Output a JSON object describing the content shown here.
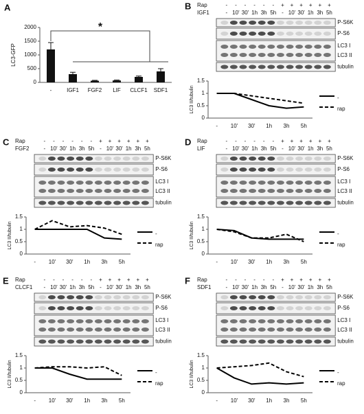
{
  "panel_labels": [
    "A",
    "B",
    "C",
    "D",
    "E",
    "F"
  ],
  "chart_data": [
    {
      "type": "bar",
      "ylabel": "LC3-GFP",
      "categories": [
        "-",
        "IGF1",
        "FGF2",
        "LIF",
        "CLCF1",
        "SDF1"
      ],
      "values": [
        1200,
        300,
        60,
        70,
        200,
        400
      ],
      "errors": [
        250,
        70,
        15,
        15,
        30,
        100
      ],
      "color": "#111111",
      "ylim": [
        0,
        2000
      ],
      "yticks": [
        0,
        500,
        1000,
        1500,
        2000
      ],
      "annotation": "*"
    },
    {
      "type": "line",
      "ylabel": "LC3 II/tubulin",
      "categories": [
        "-",
        "10'",
        "30'",
        "1h",
        "3h",
        "5h"
      ],
      "ylim": [
        0,
        1.5
      ],
      "yticks": [
        0,
        0.5,
        1,
        1.5
      ],
      "series": [
        {
          "name": "-",
          "color": "#000000",
          "dash": false,
          "values": [
            1,
            1,
            0.75,
            0.5,
            0.4,
            0.45
          ]
        },
        {
          "name": "rap",
          "color": "#000000",
          "dash": true,
          "values": [
            1,
            1,
            0.9,
            0.8,
            0.7,
            0.6
          ]
        }
      ]
    },
    {
      "type": "line",
      "ylabel": "LC3 II/tubulin",
      "categories": [
        "-",
        "10'",
        "30'",
        "1h",
        "3h",
        "5h"
      ],
      "ylim": [
        0,
        1.5
      ],
      "yticks": [
        0,
        0.5,
        1,
        1.5
      ],
      "series": [
        {
          "name": "-",
          "color": "#000000",
          "dash": false,
          "values": [
            1,
            1,
            1,
            1,
            0.65,
            0.6
          ]
        },
        {
          "name": "rap",
          "color": "#000000",
          "dash": true,
          "values": [
            1,
            1.35,
            1.1,
            1.15,
            1.05,
            0.8
          ]
        }
      ]
    },
    {
      "type": "line",
      "ylabel": "LC3 II/tubulin",
      "categories": [
        "-",
        "10'",
        "30'",
        "1h",
        "3h",
        "5h"
      ],
      "ylim": [
        0,
        1.5
      ],
      "yticks": [
        0,
        0.5,
        1,
        1.5
      ],
      "series": [
        {
          "name": "-",
          "color": "#000000",
          "dash": false,
          "values": [
            1,
            0.95,
            0.65,
            0.6,
            0.6,
            0.6
          ]
        },
        {
          "name": "rap",
          "color": "#000000",
          "dash": true,
          "values": [
            1,
            0.9,
            0.65,
            0.65,
            0.8,
            0.5
          ]
        }
      ]
    },
    {
      "type": "line",
      "ylabel": "LC3 II/tubulin",
      "categories": [
        "-",
        "10'",
        "30'",
        "1h",
        "3h",
        "5h"
      ],
      "ylim": [
        0,
        1.5
      ],
      "yticks": [
        0,
        0.5,
        1,
        1.5
      ],
      "series": [
        {
          "name": "-",
          "color": "#000000",
          "dash": false,
          "values": [
            1,
            1,
            0.75,
            0.55,
            0.55,
            0.55
          ]
        },
        {
          "name": "rap",
          "color": "#000000",
          "dash": true,
          "values": [
            1,
            1.05,
            1.05,
            1,
            1.05,
            0.7
          ]
        }
      ]
    },
    {
      "type": "line",
      "ylabel": "LC3 II/tubulin",
      "categories": [
        "-",
        "10'",
        "30'",
        "1h",
        "3h",
        "5h"
      ],
      "ylim": [
        0,
        1.5
      ],
      "yticks": [
        0,
        0.5,
        1,
        1.5
      ],
      "series": [
        {
          "name": "-",
          "color": "#000000",
          "dash": false,
          "values": [
            1,
            0.6,
            0.35,
            0.4,
            0.35,
            0.4
          ]
        },
        {
          "name": "rap",
          "color": "#000000",
          "dash": true,
          "values": [
            1,
            1.05,
            1.1,
            1.2,
            0.85,
            0.65
          ]
        }
      ]
    }
  ],
  "blots": [
    {
      "rap_label": "Rap",
      "rap": [
        "-",
        "-",
        "-",
        "-",
        "-",
        "-",
        "+",
        "+",
        "+",
        "+",
        "+",
        "+"
      ],
      "factor": "IGF1",
      "times": [
        "-",
        "10'",
        "30'",
        "1h",
        "3h",
        "5h",
        "-",
        "10'",
        "30'",
        "1h",
        "3h",
        "5h"
      ],
      "bands": [
        "P-S6K",
        "P-S6",
        "LC3 I",
        "LC3 II",
        "tubulin"
      ]
    },
    {
      "rap_label": "Rap",
      "rap": [
        "-",
        "-",
        "-",
        "-",
        "-",
        "-",
        "+",
        "+",
        "+",
        "+",
        "+",
        "+"
      ],
      "factor": "FGF2",
      "times": [
        "-",
        "10'",
        "30'",
        "1h",
        "3h",
        "5h",
        "-",
        "10'",
        "30'",
        "1h",
        "3h",
        "5h"
      ],
      "bands": [
        "P-S6K",
        "P-S6",
        "LC3 I",
        "LC3 II",
        "tubulin"
      ]
    },
    {
      "rap_label": "Rap",
      "rap": [
        "-",
        "-",
        "-",
        "-",
        "-",
        "-",
        "+",
        "+",
        "+",
        "+",
        "+",
        "+"
      ],
      "factor": "LIF",
      "times": [
        "-",
        "10'",
        "30'",
        "1h",
        "3h",
        "5h",
        "-",
        "10'",
        "30'",
        "1h",
        "3h",
        "5h"
      ],
      "bands": [
        "P-S6K",
        "P-S6",
        "LC3 I",
        "LC3 II",
        "tubulin"
      ]
    },
    {
      "rap_label": "Rap",
      "rap": [
        "-",
        "-",
        "-",
        "-",
        "-",
        "-",
        "+",
        "+",
        "+",
        "+",
        "+",
        "+"
      ],
      "factor": "CLCF1",
      "times": [
        "-",
        "10'",
        "30'",
        "1h",
        "3h",
        "5h",
        "-",
        "10'",
        "30'",
        "1h",
        "3h",
        "5h"
      ],
      "bands": [
        "P-S6K",
        "P-S6",
        "LC3 I",
        "LC3 II",
        "tubulin"
      ]
    },
    {
      "rap_label": "Rap",
      "rap": [
        "-",
        "-",
        "-",
        "-",
        "-",
        "-",
        "+",
        "+",
        "+",
        "+",
        "+",
        "+"
      ],
      "factor": "SDF1",
      "times": [
        "-",
        "10'",
        "30'",
        "1h",
        "3h",
        "5h",
        "-",
        "10'",
        "30'",
        "1h",
        "3h",
        "5h"
      ],
      "bands": [
        "P-S6K",
        "P-S6",
        "LC3 I",
        "LC3 II",
        "tubulin"
      ]
    }
  ]
}
